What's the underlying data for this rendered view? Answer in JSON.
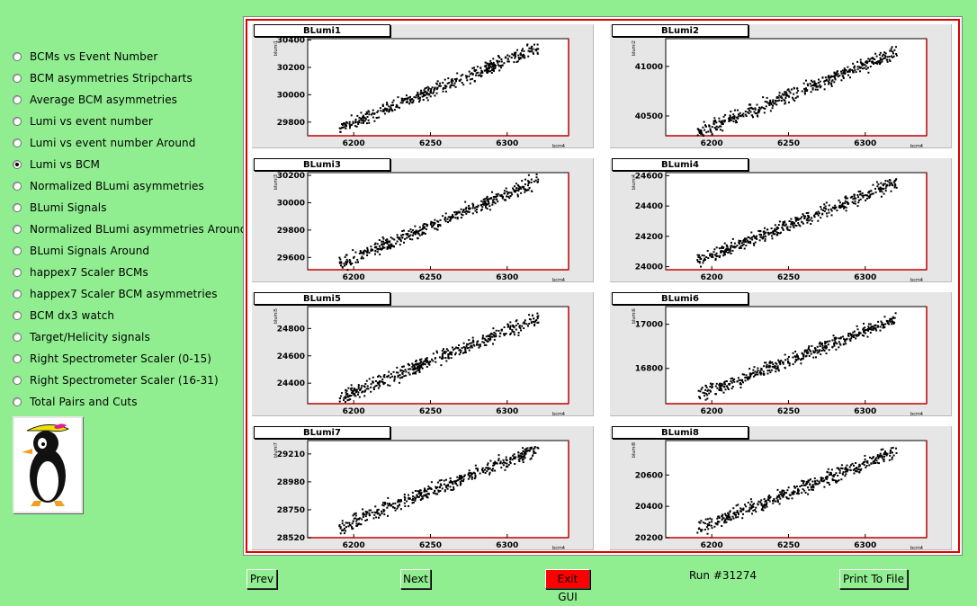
{
  "sidebar": {
    "items": [
      {
        "label": "BCMs vs Event Number",
        "checked": false
      },
      {
        "label": "BCM asymmetries Stripcharts",
        "checked": false
      },
      {
        "label": "Average BCM asymmetries",
        "checked": false
      },
      {
        "label": "Lumi vs event number",
        "checked": false
      },
      {
        "label": "Lumi vs event number Around",
        "checked": false
      },
      {
        "label": "Lumi vs BCM",
        "checked": true
      },
      {
        "label": "Normalized BLumi asymmetries",
        "checked": false
      },
      {
        "label": "BLumi Signals",
        "checked": false
      },
      {
        "label": "Normalized BLumi asymmetries Around",
        "checked": false
      },
      {
        "label": "BLumi Signals Around",
        "checked": false
      },
      {
        "label": "happex7 Scaler BCMs",
        "checked": false
      },
      {
        "label": "happex7 Scaler BCM asymmetries",
        "checked": false
      },
      {
        "label": "BCM dx3 watch",
        "checked": false
      },
      {
        "label": "Target/Helicity signals",
        "checked": false
      },
      {
        "label": "Right Spectrometer Scaler (0-15)",
        "checked": false
      },
      {
        "label": "Right Spectrometer Scaler (16-31)",
        "checked": false
      },
      {
        "label": "Total Pairs and Cuts",
        "checked": false
      }
    ],
    "logo_icon": "penguin-mascot-icon"
  },
  "buttons": {
    "prev": "Prev",
    "next": "Next",
    "exit": "Exit GUI",
    "print": "Print To File"
  },
  "run_label": "Run #31274",
  "colors": {
    "background": "#90ee90",
    "frame": "#e00000",
    "exit": "#ff0000"
  },
  "chart_data": [
    {
      "type": "scatter",
      "title": "BLumi1",
      "xlabel": "bcm4",
      "ylabel": "blumi1",
      "xlim": [
        6170,
        6340
      ],
      "ylim": [
        29700,
        30410
      ],
      "x_ticks": [
        6200,
        6250,
        6300
      ],
      "y_ticks": [
        29800,
        30000,
        30200,
        30400
      ],
      "trend": {
        "x": [
          6190,
          6320
        ],
        "y": [
          29760,
          30350
        ]
      }
    },
    {
      "type": "scatter",
      "title": "BLumi2",
      "xlabel": "bcm4",
      "ylabel": "blumi2",
      "xlim": [
        6170,
        6340
      ],
      "ylim": [
        40300,
        41280
      ],
      "x_ticks": [
        6200,
        6250,
        6300
      ],
      "y_ticks": [
        40500,
        41000
      ],
      "trend": {
        "x": [
          6190,
          6320
        ],
        "y": [
          40350,
          41150
        ]
      }
    },
    {
      "type": "scatter",
      "title": "BLumi3",
      "xlabel": "bcm4",
      "ylabel": "blumi3",
      "xlim": [
        6170,
        6340
      ],
      "ylim": [
        29510,
        30220
      ],
      "x_ticks": [
        6200,
        6250,
        6300
      ],
      "y_ticks": [
        29600,
        29800,
        30000,
        30200
      ],
      "trend": {
        "x": [
          6190,
          6320
        ],
        "y": [
          29560,
          30170
        ]
      }
    },
    {
      "type": "scatter",
      "title": "BLumi4",
      "xlabel": "bcm4",
      "ylabel": "blumi4",
      "xlim": [
        6170,
        6340
      ],
      "ylim": [
        23980,
        24620
      ],
      "x_ticks": [
        6200,
        6250,
        6300
      ],
      "y_ticks": [
        24000,
        24200,
        24400,
        24600
      ],
      "trend": {
        "x": [
          6190,
          6320
        ],
        "y": [
          24040,
          24560
        ]
      }
    },
    {
      "type": "scatter",
      "title": "BLumi5",
      "xlabel": "bcm4",
      "ylabel": "blumi5",
      "xlim": [
        6170,
        6340
      ],
      "ylim": [
        24250,
        24960
      ],
      "x_ticks": [
        6200,
        6250,
        6300
      ],
      "y_ticks": [
        24400,
        24600,
        24800
      ],
      "trend": {
        "x": [
          6190,
          6320
        ],
        "y": [
          24300,
          24880
        ]
      }
    },
    {
      "type": "scatter",
      "title": "BLumi6",
      "xlabel": "bcm4",
      "ylabel": "blumi6",
      "xlim": [
        6170,
        6340
      ],
      "ylim": [
        16640,
        17080
      ],
      "x_ticks": [
        6200,
        6250,
        6300
      ],
      "y_ticks": [
        16800,
        17000
      ],
      "trend": {
        "x": [
          6190,
          6320
        ],
        "y": [
          16680,
          17030
        ]
      }
    },
    {
      "type": "scatter",
      "title": "BLumi7",
      "xlabel": "bcm4",
      "ylabel": "blumi7",
      "xlim": [
        6170,
        6340
      ],
      "ylim": [
        28520,
        29320
      ],
      "x_ticks": [
        6200,
        6250,
        6300
      ],
      "y_ticks": [
        28520,
        28750,
        28980,
        29210
      ],
      "trend": {
        "x": [
          6190,
          6320
        ],
        "y": [
          28620,
          29260
        ]
      }
    },
    {
      "type": "scatter",
      "title": "BLumi8",
      "xlabel": "bcm4",
      "ylabel": "blumi8",
      "xlim": [
        6170,
        6340
      ],
      "ylim": [
        20200,
        20820
      ],
      "x_ticks": [
        6200,
        6250,
        6300
      ],
      "y_ticks": [
        20200,
        20400,
        20600
      ],
      "trend": {
        "x": [
          6190,
          6320
        ],
        "y": [
          20260,
          20760
        ]
      }
    }
  ]
}
